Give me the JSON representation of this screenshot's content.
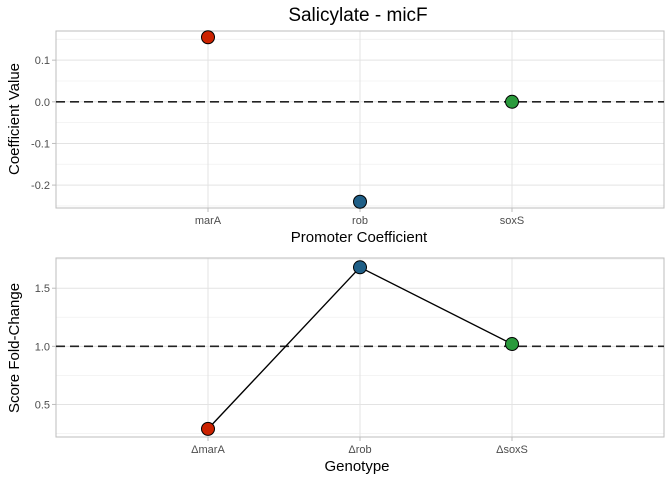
{
  "chart_data": [
    {
      "type": "scatter",
      "title": "Salicylate - micF",
      "xlabel": "Promoter Coefficient",
      "ylabel": "Coefficient Value",
      "categories": [
        "marA",
        "rob",
        "soxS"
      ],
      "values": [
        0.155,
        -0.24,
        0.0
      ],
      "colors": [
        "#cc2200",
        "#1f5f87",
        "#2a9a3c"
      ],
      "yticks": [
        0.1,
        0.0,
        -0.1,
        -0.2
      ],
      "ytick_labels": [
        "0.1",
        "0.0",
        "-0.1",
        "-0.2"
      ],
      "ylim": [
        -0.255,
        0.17
      ],
      "reference_line": 0.0,
      "grid": true
    },
    {
      "type": "line",
      "xlabel": "Genotype",
      "ylabel": "Score Fold-Change",
      "categories": [
        "ΔmarA",
        "Δrob",
        "ΔsoxS"
      ],
      "values": [
        0.29,
        1.68,
        1.02
      ],
      "colors": [
        "#cc2200",
        "#1f5f87",
        "#2a9a3c"
      ],
      "yticks": [
        0.5,
        1.0,
        1.5
      ],
      "ytick_labels": [
        "0.5",
        "1.0",
        "1.5"
      ],
      "ylim": [
        0.22,
        1.76
      ],
      "reference_line": 1.0,
      "grid": true
    }
  ]
}
